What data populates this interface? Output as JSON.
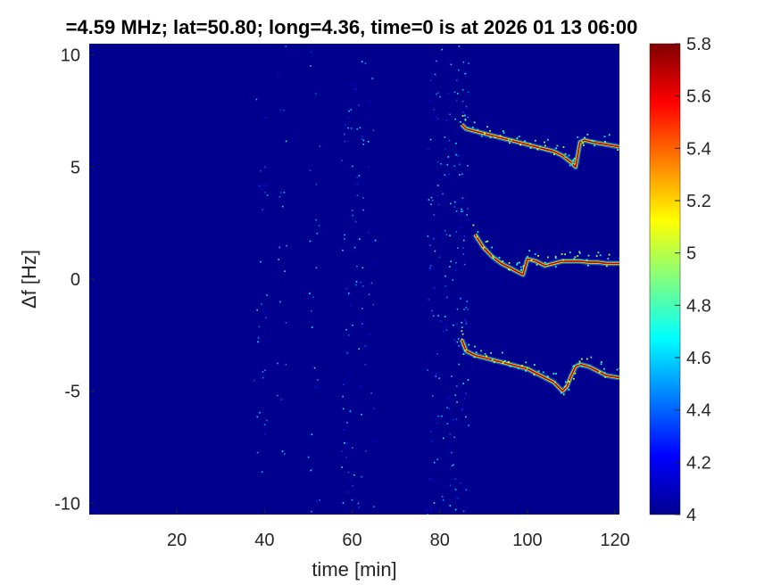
{
  "chart_data": {
    "type": "heatmap",
    "title": "=4.59 MHz;  lat=50.80; long=4.36, time=0 is at 2026 01 13 06:00",
    "xlabel": "time [min]",
    "ylabel": "Δf [Hz]",
    "xlim": [
      0,
      121
    ],
    "ylim": [
      -10.5,
      10.5
    ],
    "x_ticks": [
      20,
      40,
      60,
      80,
      100,
      120
    ],
    "x_tick_labels": [
      "20",
      "40",
      "60",
      "80",
      "100",
      "120"
    ],
    "y_ticks": [
      10,
      5,
      0,
      -5,
      -10
    ],
    "y_tick_labels": [
      "10",
      "5",
      "0",
      "-5",
      "-10"
    ],
    "colorbar": {
      "min": 4,
      "max": 5.8,
      "ticks": [
        4,
        4.2,
        4.4,
        4.6,
        4.8,
        5,
        5.2,
        5.4,
        5.6,
        5.8
      ],
      "tick_labels": [
        "4",
        "4.2",
        "4.4",
        "4.6",
        "4.8",
        "5",
        "5.2",
        "5.4",
        "5.6",
        "5.8"
      ],
      "colormap": "jet"
    },
    "background_value": 4.0,
    "noise_bands": [
      {
        "x": 39,
        "width": 1.5,
        "density": 0.12
      },
      {
        "x": 44,
        "width": 1.2,
        "density": 0.08
      },
      {
        "x": 51,
        "width": 1.5,
        "density": 0.1
      },
      {
        "x": 60,
        "width": 2.5,
        "density": 0.3
      },
      {
        "x": 64,
        "width": 1.2,
        "density": 0.08
      },
      {
        "x": 80.5,
        "width": 3.5,
        "density": 0.45
      },
      {
        "x": 85,
        "width": 1.5,
        "density": 0.3
      }
    ],
    "series": [
      {
        "x": [
          85,
          86,
          88,
          90,
          92,
          94,
          96,
          98,
          100,
          102,
          104,
          106,
          108,
          110,
          111,
          112,
          113,
          115,
          118,
          121
        ],
        "y": [
          6.9,
          6.7,
          6.6,
          6.5,
          6.4,
          6.3,
          6.2,
          6.1,
          6.0,
          5.9,
          5.8,
          5.7,
          5.5,
          5.2,
          5.0,
          6.1,
          6.2,
          6.1,
          6.0,
          5.9
        ]
      },
      {
        "x": [
          88,
          90,
          92,
          94,
          96,
          98,
          99,
          100,
          102,
          104,
          106,
          108,
          110,
          112,
          114,
          116,
          118,
          121
        ],
        "y": [
          2.0,
          1.4,
          1.0,
          0.7,
          0.5,
          0.3,
          0.2,
          0.9,
          0.8,
          0.6,
          0.7,
          0.8,
          0.8,
          0.8,
          0.75,
          0.75,
          0.7,
          0.7
        ]
      },
      {
        "x": [
          85,
          86,
          88,
          90,
          92,
          94,
          96,
          98,
          100,
          102,
          104,
          106,
          108,
          109,
          110,
          111,
          112,
          114,
          116,
          118,
          121
        ],
        "y": [
          -2.7,
          -3.2,
          -3.4,
          -3.5,
          -3.6,
          -3.7,
          -3.8,
          -3.9,
          -4.0,
          -4.2,
          -4.4,
          -4.6,
          -5.0,
          -4.8,
          -4.3,
          -3.9,
          -3.8,
          -3.9,
          -4.1,
          -4.3,
          -4.4
        ]
      }
    ]
  }
}
